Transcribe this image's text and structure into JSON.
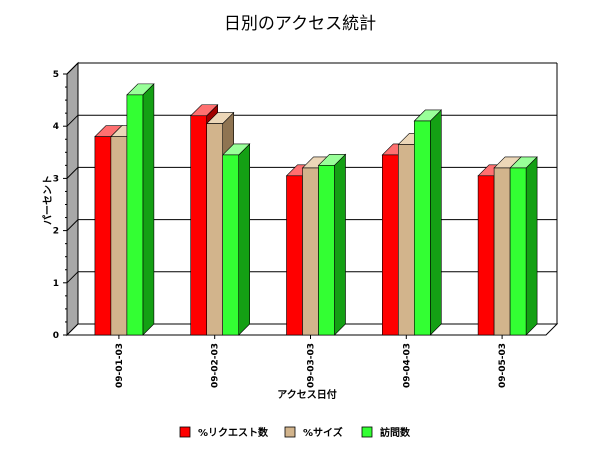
{
  "chart_data": {
    "type": "bar",
    "title": "日別のアクセス統計",
    "xlabel": "アクセス日付",
    "ylabel": "パーセント",
    "categories": [
      "09-01-03",
      "09-02-03",
      "09-03-03",
      "09-04-03",
      "09-05-03"
    ],
    "ylim": [
      0,
      5
    ],
    "yticks": [
      0,
      1,
      2,
      3,
      4,
      5
    ],
    "grid": true,
    "three_d": true,
    "legend_position": "bottom",
    "series": [
      {
        "name": "%リクエスト数",
        "color": "#ff0000",
        "side_color": "#a00000",
        "top_color": "#ff7070",
        "values": [
          3.8,
          4.2,
          3.05,
          3.45,
          3.05
        ]
      },
      {
        "name": "%サイズ",
        "color": "#d2b48c",
        "side_color": "#8f7452",
        "top_color": "#ecd7b8",
        "values": [
          3.8,
          4.05,
          3.2,
          3.65,
          3.2
        ]
      },
      {
        "name": "訪問数",
        "color": "#33ff33",
        "side_color": "#14a014",
        "top_color": "#99ff99",
        "values": [
          4.6,
          3.45,
          3.25,
          4.1,
          3.2
        ]
      }
    ]
  }
}
